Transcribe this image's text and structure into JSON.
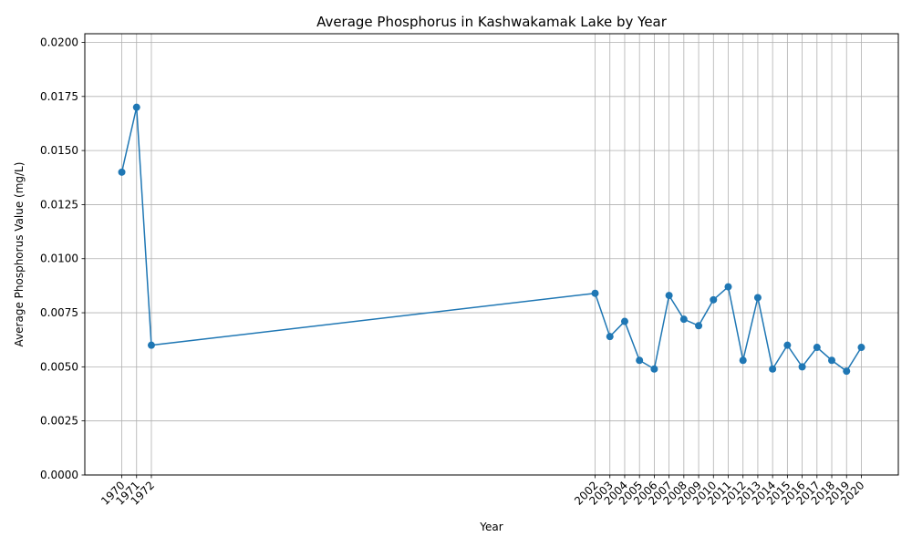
{
  "chart_data": {
    "type": "line",
    "title": "Average Phosphorus in Kashwakamak Lake by Year",
    "xlabel": "Year",
    "ylabel": "Average Phosphorus Value (mg/L)",
    "ylim": [
      0,
      0.0204
    ],
    "grid": true,
    "color": "#1f77b4",
    "yticks": [
      "0.0000",
      "0.0025",
      "0.0050",
      "0.0075",
      "0.0100",
      "0.0125",
      "0.0150",
      "0.0175",
      "0.0200"
    ],
    "x": [
      "1970",
      "1971",
      "1972",
      "2002",
      "2003",
      "2004",
      "2005",
      "2006",
      "2007",
      "2008",
      "2009",
      "2010",
      "2011",
      "2012",
      "2013",
      "2014",
      "2015",
      "2016",
      "2017",
      "2018",
      "2019",
      "2020"
    ],
    "series": [
      {
        "values": [
          0.014,
          0.017,
          0.006,
          0.0084,
          0.0064,
          0.0071,
          0.0053,
          0.0049,
          0.0083,
          0.0072,
          0.0069,
          0.0081,
          0.0087,
          0.0053,
          0.0082,
          0.0049,
          0.006,
          0.005,
          0.0059,
          0.0053,
          0.0048,
          0.0059
        ]
      }
    ]
  }
}
